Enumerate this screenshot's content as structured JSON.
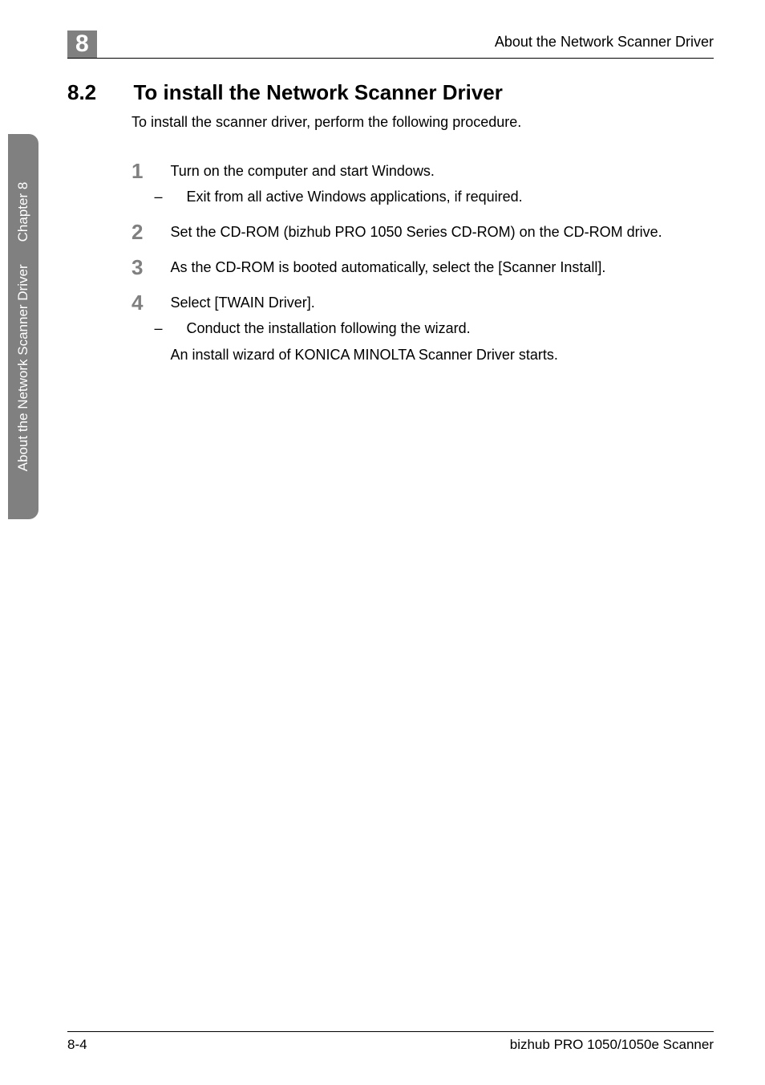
{
  "header": {
    "chapter_number": "8",
    "running_title": "About the Network Scanner Driver"
  },
  "sidebar": {
    "chapter_label": "Chapter 8",
    "title": "About the Network Scanner Driver"
  },
  "section": {
    "number": "8.2",
    "title": "To install the Network Scanner Driver",
    "intro": "To install the scanner driver, perform the following procedure."
  },
  "steps": [
    {
      "num": "1",
      "text": "Turn on the computer and start Windows.",
      "subs": [
        "Exit from all active Windows applications, if required."
      ],
      "after": null
    },
    {
      "num": "2",
      "text": "Set the CD-ROM (bizhub PRO 1050 Series CD-ROM) on the CD-ROM drive.",
      "subs": [],
      "after": null
    },
    {
      "num": "3",
      "text": "As the CD-ROM is booted automatically, select the [Scanner Install].",
      "subs": [],
      "after": null
    },
    {
      "num": "4",
      "text": "Select [TWAIN Driver].",
      "subs": [
        "Conduct the installation following the wizard."
      ],
      "after": "An install wizard of KONICA MINOLTA Scanner Driver starts."
    }
  ],
  "footer": {
    "page": "8-4",
    "product": "bizhub PRO 1050/1050e Scanner"
  },
  "colors": {
    "gray": "#808080",
    "text": "#000000",
    "bg": "#ffffff"
  }
}
